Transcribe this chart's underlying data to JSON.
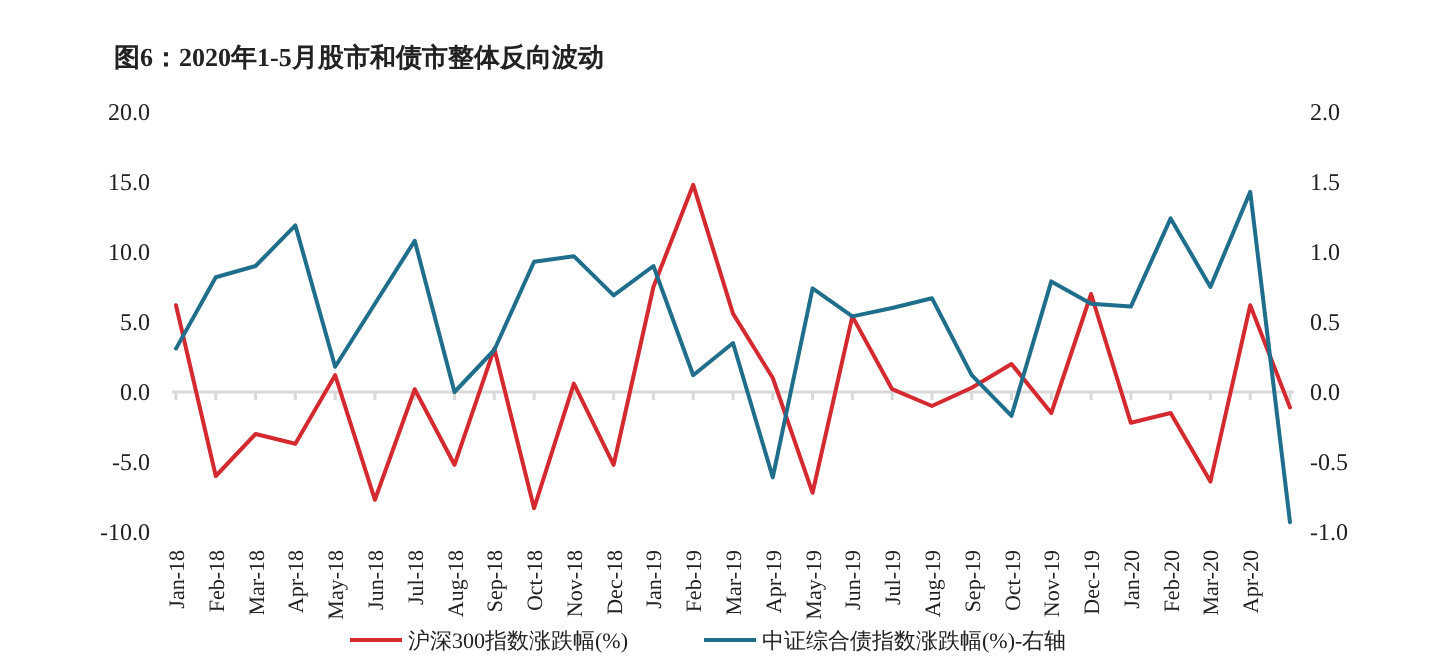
{
  "chart_data": {
    "type": "line",
    "title": "图6：2020年1-5月股市和债市整体反向波动",
    "categories": [
      "Jan-18",
      "Feb-18",
      "Mar-18",
      "Apr-18",
      "May-18",
      "Jun-18",
      "Jul-18",
      "Aug-18",
      "Sep-18",
      "Oct-18",
      "Nov-18",
      "Dec-18",
      "Jan-19",
      "Feb-19",
      "Mar-19",
      "Apr-19",
      "May-19",
      "Jun-19",
      "Jul-19",
      "Aug-19",
      "Sep-19",
      "Oct-19",
      "Nov-19",
      "Dec-19",
      "Jan-20",
      "Feb-20",
      "Mar-20",
      "Apr-20",
      null
    ],
    "series": [
      {
        "name": "沪深300指数涨跌幅(%)",
        "color": "#d42a2f",
        "values": [
          6.2,
          -6.0,
          -3.0,
          -3.7,
          1.2,
          -7.7,
          0.2,
          -5.2,
          3.1,
          -8.3,
          0.6,
          -5.2,
          7.5,
          14.8,
          5.6,
          1.0,
          -7.2,
          5.4,
          0.2,
          -1.0,
          0.3,
          2.0,
          -1.5,
          7.0,
          -2.2,
          -1.5,
          -6.4,
          6.2,
          -1.1
        ]
      },
      {
        "name": "中证综合债指数涨跌幅(%)-右轴",
        "color": "#1f6e8c",
        "axis": "y2",
        "values": [
          0.31,
          0.82,
          0.9,
          1.19,
          0.18,
          0.63,
          1.08,
          0.0,
          0.3,
          0.93,
          0.97,
          0.69,
          0.9,
          0.12,
          0.35,
          -0.61,
          0.74,
          0.54,
          0.6,
          0.67,
          0.12,
          -0.17,
          0.79,
          0.63,
          0.61,
          1.24,
          0.75,
          1.43,
          -0.93
        ]
      }
    ],
    "ylim": [
      -10,
      20
    ],
    "yticks": [
      {
        "value": -10,
        "label": "-10.0"
      },
      {
        "value": -5,
        "label": "-5.0"
      },
      {
        "value": 0,
        "label": "0.0"
      },
      {
        "value": 5,
        "label": "5.0"
      },
      {
        "value": 10,
        "label": "10.0"
      },
      {
        "value": 15,
        "label": "15.0"
      },
      {
        "value": 20,
        "label": "20.0"
      }
    ],
    "y2lim": [
      -1,
      2
    ],
    "y2ticks": [
      {
        "value": -1,
        "label": "-1.0"
      },
      {
        "value": -0.5,
        "label": "-0.5"
      },
      {
        "value": 0,
        "label": "0.0"
      },
      {
        "value": 0.5,
        "label": "0.5"
      },
      {
        "value": 1,
        "label": "1.0"
      },
      {
        "value": 1.5,
        "label": "1.5"
      },
      {
        "value": 2,
        "label": "2.0"
      }
    ],
    "legend": "bottom",
    "marker": "none",
    "line_style": "solid"
  }
}
